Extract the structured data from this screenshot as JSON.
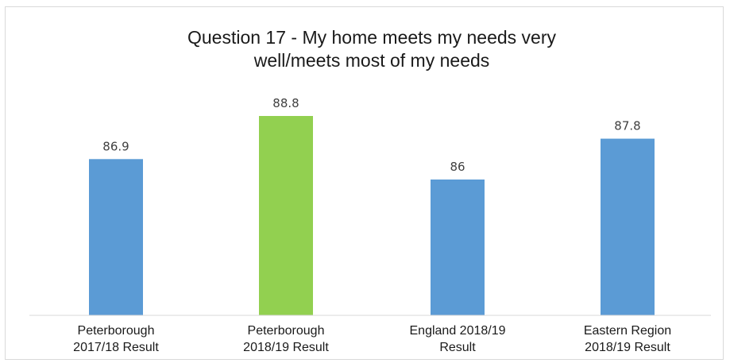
{
  "chart_data": {
    "type": "bar",
    "title": [
      "Question 17 -  My home meets my needs very",
      "well/meets most of my needs"
    ],
    "categories": [
      [
        "Peterborough",
        "2017/18 Result"
      ],
      [
        "Peterborough",
        "2018/19 Result"
      ],
      [
        "England 2018/19",
        "Result"
      ],
      [
        "Eastern Region",
        "2018/19 Result"
      ]
    ],
    "values": [
      86.9,
      88.8,
      86,
      87.8
    ],
    "value_labels": [
      "86.9",
      "88.8",
      "86",
      "87.8"
    ],
    "bar_colors": [
      "#5b9bd5",
      "#92d050",
      "#5b9bd5",
      "#5b9bd5"
    ],
    "xlabel": "",
    "ylabel": "",
    "grid": false,
    "legend": "none"
  }
}
